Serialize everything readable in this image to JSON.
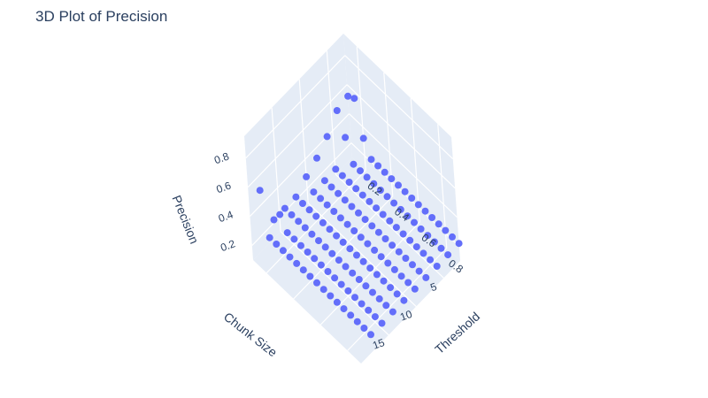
{
  "chart_data": {
    "type": "scatter3d",
    "title": "3D Plot of Precision",
    "marker_color": "#636efa",
    "pane_color": "#e5ecf6",
    "grid_color": "#ffffff",
    "x_axis": {
      "label": "Threshold",
      "range": [
        0.1,
        0.9
      ],
      "ticks": [
        0.2,
        0.4,
        0.6,
        0.8
      ],
      "tick_labels": [
        "0.2",
        "0.4",
        "0.6",
        "0.8"
      ]
    },
    "y_axis": {
      "label": "Chunk Size",
      "range": [
        2,
        20
      ],
      "ticks": [
        5,
        10,
        15
      ],
      "tick_labels": [
        "5",
        "10",
        "15"
      ]
    },
    "z_axis": {
      "label": "Precision",
      "range": [
        0.1,
        0.95
      ],
      "ticks": [
        0.2,
        0.4,
        0.6,
        0.8
      ],
      "tick_labels": [
        "0.2",
        "0.4",
        "0.6",
        "0.8"
      ]
    },
    "grid": {
      "thresholds": [
        0.1,
        0.15,
        0.2,
        0.25,
        0.3,
        0.35,
        0.4,
        0.45,
        0.5,
        0.55,
        0.6,
        0.65,
        0.7,
        0.75,
        0.8,
        0.85,
        0.9
      ],
      "chunk_sizes": [
        2,
        4,
        6,
        8,
        10,
        12,
        14,
        16,
        18
      ]
    },
    "precision_base": 0.22,
    "precision_outliers": [
      {
        "threshold": 0.1,
        "chunk_size": 2,
        "precision": 0.52
      },
      {
        "threshold": 0.15,
        "chunk_size": 2,
        "precision": 0.55
      },
      {
        "threshold": 0.1,
        "chunk_size": 4,
        "precision": 0.5
      },
      {
        "threshold": 0.1,
        "chunk_size": 6,
        "precision": 0.4
      },
      {
        "threshold": 0.15,
        "chunk_size": 4,
        "precision": 0.36
      },
      {
        "threshold": 0.2,
        "chunk_size": 2,
        "precision": 0.32
      },
      {
        "threshold": 0.1,
        "chunk_size": 8,
        "precision": 0.33
      },
      {
        "threshold": 0.1,
        "chunk_size": 18,
        "precision": 0.5
      },
      {
        "threshold": 0.15,
        "chunk_size": 16,
        "precision": 0.3
      },
      {
        "threshold": 0.1,
        "chunk_size": 10,
        "precision": 0.28
      }
    ]
  }
}
